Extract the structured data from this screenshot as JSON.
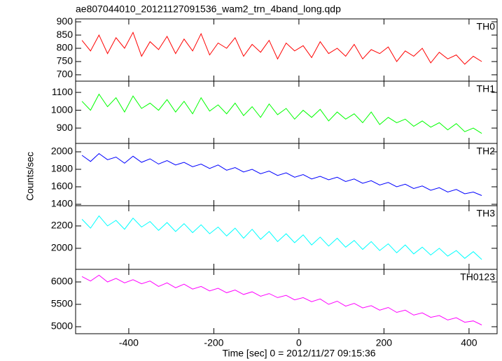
{
  "title": "ae807044010_20121127091536_wam2_trn_4band_long.qdp",
  "xlabel": "Time [sec] 0 = 2012/11/27 09:15:36",
  "ylabel": "Counts/sec",
  "chart_data": [
    {
      "type": "line",
      "xlim": [
        -525,
        466
      ],
      "xticks": [
        -400,
        -200,
        0,
        200,
        400
      ],
      "ylim": [
        676,
        911
      ],
      "yticks": [
        700,
        750,
        800,
        850,
        900
      ],
      "x": [
        -510,
        -490,
        -470,
        -450,
        -430,
        -410,
        -390,
        -370,
        -350,
        -330,
        -310,
        -290,
        -270,
        -250,
        -230,
        -210,
        -190,
        -170,
        -150,
        -130,
        -110,
        -90,
        -70,
        -50,
        -30,
        -10,
        10,
        30,
        50,
        70,
        90,
        110,
        130,
        150,
        170,
        190,
        210,
        230,
        250,
        270,
        290,
        310,
        330,
        350,
        370,
        390,
        410,
        430
      ],
      "series": [
        {
          "name": "TH0",
          "color": "#ff0000",
          "values": [
            830,
            790,
            850,
            780,
            840,
            800,
            860,
            770,
            825,
            795,
            845,
            780,
            835,
            790,
            855,
            775,
            820,
            800,
            840,
            770,
            815,
            785,
            830,
            760,
            820,
            790,
            810,
            765,
            825,
            780,
            800,
            770,
            815,
            760,
            795,
            780,
            805,
            750,
            790,
            770,
            800,
            745,
            785,
            760,
            775,
            740,
            770,
            750
          ]
        }
      ]
    },
    {
      "type": "line",
      "xlim": [
        -525,
        466
      ],
      "xticks": [
        -400,
        -200,
        0,
        200,
        400
      ],
      "ylim": [
        814,
        1163
      ],
      "yticks": [
        900,
        1000,
        1100
      ],
      "x": [
        -510,
        -490,
        -470,
        -450,
        -430,
        -410,
        -390,
        -370,
        -350,
        -330,
        -310,
        -290,
        -270,
        -250,
        -230,
        -210,
        -190,
        -170,
        -150,
        -130,
        -110,
        -90,
        -70,
        -50,
        -30,
        -10,
        10,
        30,
        50,
        70,
        90,
        110,
        130,
        150,
        170,
        190,
        210,
        230,
        250,
        270,
        290,
        310,
        330,
        350,
        370,
        390,
        410,
        430
      ],
      "series": [
        {
          "name": "TH1",
          "color": "#00ff00",
          "values": [
            1050,
            1000,
            1090,
            1020,
            1070,
            990,
            1080,
            1010,
            1040,
            1000,
            1060,
            990,
            1050,
            980,
            1070,
            995,
            1030,
            980,
            1040,
            970,
            1020,
            960,
            1035,
            975,
            1010,
            950,
            1000,
            960,
            1005,
            940,
            990,
            950,
            980,
            930,
            990,
            920,
            960,
            930,
            950,
            910,
            940,
            905,
            930,
            890,
            925,
            880,
            900,
            870
          ]
        }
      ]
    },
    {
      "type": "line",
      "xlim": [
        -525,
        466
      ],
      "xticks": [
        -400,
        -200,
        0,
        200,
        400
      ],
      "ylim": [
        1384,
        2096
      ],
      "yticks": [
        1400,
        1600,
        1800,
        2000
      ],
      "x": [
        -510,
        -490,
        -470,
        -450,
        -430,
        -410,
        -390,
        -370,
        -350,
        -330,
        -310,
        -290,
        -270,
        -250,
        -230,
        -210,
        -190,
        -170,
        -150,
        -130,
        -110,
        -90,
        -70,
        -50,
        -30,
        -10,
        10,
        30,
        50,
        70,
        90,
        110,
        130,
        150,
        170,
        190,
        210,
        230,
        250,
        270,
        290,
        310,
        330,
        350,
        370,
        390,
        410,
        430
      ],
      "series": [
        {
          "name": "TH2",
          "color": "#0000ff",
          "values": [
            1960,
            1890,
            1980,
            1910,
            1940,
            1870,
            1950,
            1880,
            1920,
            1860,
            1900,
            1850,
            1880,
            1830,
            1860,
            1810,
            1850,
            1790,
            1820,
            1770,
            1800,
            1750,
            1780,
            1730,
            1760,
            1710,
            1740,
            1690,
            1720,
            1680,
            1710,
            1660,
            1690,
            1640,
            1670,
            1620,
            1650,
            1600,
            1630,
            1580,
            1610,
            1560,
            1590,
            1540,
            1570,
            1520,
            1540,
            1500
          ]
        }
      ]
    },
    {
      "type": "line",
      "xlim": [
        -525,
        466
      ],
      "xticks": [
        -400,
        -200,
        0,
        200,
        400
      ],
      "ylim": [
        1812,
        2381
      ],
      "yticks": [
        2000,
        2200
      ],
      "x": [
        -510,
        -490,
        -470,
        -450,
        -430,
        -410,
        -390,
        -370,
        -350,
        -330,
        -310,
        -290,
        -270,
        -250,
        -230,
        -210,
        -190,
        -170,
        -150,
        -130,
        -110,
        -90,
        -70,
        -50,
        -30,
        -10,
        10,
        30,
        50,
        70,
        90,
        110,
        130,
        150,
        170,
        190,
        210,
        230,
        250,
        270,
        290,
        310,
        330,
        350,
        370,
        390,
        410,
        430
      ],
      "series": [
        {
          "name": "TH3",
          "color": "#00ffff",
          "values": [
            2260,
            2180,
            2290,
            2200,
            2250,
            2170,
            2270,
            2190,
            2240,
            2160,
            2230,
            2150,
            2220,
            2140,
            2210,
            2130,
            2190,
            2110,
            2180,
            2090,
            2170,
            2080,
            2150,
            2060,
            2130,
            2050,
            2120,
            2030,
            2100,
            2020,
            2090,
            2010,
            2070,
            1990,
            2060,
            1980,
            2040,
            1960,
            2030,
            1950,
            2010,
            1940,
            2000,
            1930,
            1980,
            1910,
            1970,
            1900
          ]
        }
      ]
    },
    {
      "type": "line",
      "xlim": [
        -525,
        466
      ],
      "xticks": [
        -400,
        -200,
        0,
        200,
        400
      ],
      "ylim": [
        4844,
        6281
      ],
      "yticks": [
        5000,
        5500,
        6000
      ],
      "x": [
        -510,
        -490,
        -470,
        -450,
        -430,
        -410,
        -390,
        -370,
        -350,
        -330,
        -310,
        -290,
        -270,
        -250,
        -230,
        -210,
        -190,
        -170,
        -150,
        -130,
        -110,
        -90,
        -70,
        -50,
        -30,
        -10,
        10,
        30,
        50,
        70,
        90,
        110,
        130,
        150,
        170,
        190,
        210,
        230,
        250,
        270,
        290,
        310,
        330,
        350,
        370,
        390,
        410,
        430
      ],
      "series": [
        {
          "name": "TH0123",
          "color": "#ff00ff",
          "values": [
            6120,
            6020,
            6150,
            6000,
            6080,
            5980,
            6050,
            5960,
            6020,
            5900,
            5980,
            5870,
            5950,
            5840,
            5900,
            5800,
            5860,
            5760,
            5820,
            5720,
            5780,
            5680,
            5740,
            5650,
            5700,
            5600,
            5650,
            5560,
            5620,
            5500,
            5570,
            5460,
            5520,
            5420,
            5470,
            5370,
            5430,
            5320,
            5370,
            5260,
            5310,
            5210,
            5250,
            5150,
            5200,
            5100,
            5130,
            5040
          ]
        }
      ]
    }
  ]
}
